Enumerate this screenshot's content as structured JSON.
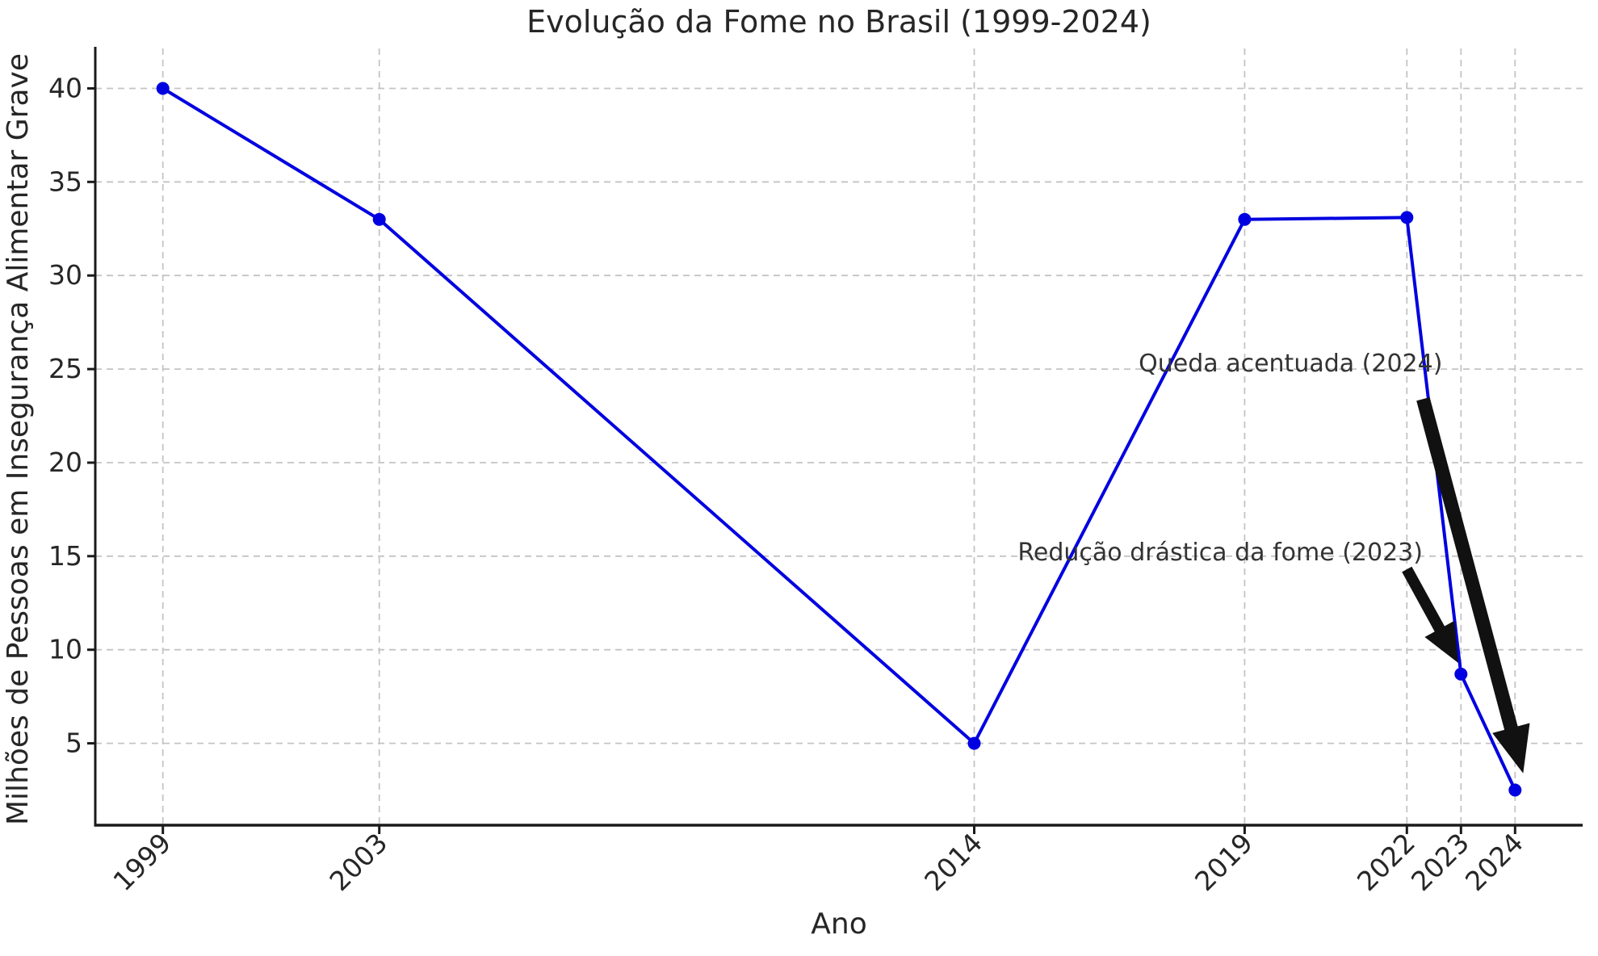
{
  "chart_data": {
    "type": "line",
    "title": "Evolução da Fome no Brasil (1999-2024)",
    "xlabel": "Ano",
    "ylabel": "Milhões de Pessoas em Insegurança Alimentar Grave",
    "x": [
      1999,
      2003,
      2014,
      2019,
      2022,
      2023,
      2024
    ],
    "y": [
      40,
      33,
      5,
      33,
      33.1,
      8.7,
      2.5
    ],
    "x_tick_labels": [
      "1999",
      "2003",
      "2014",
      "2019",
      "2022",
      "2023",
      "2024"
    ],
    "y_tick_values": [
      5,
      10,
      15,
      20,
      25,
      30,
      35,
      40
    ],
    "y_tick_labels": [
      "5",
      "10",
      "15",
      "20",
      "25",
      "30",
      "35",
      "40"
    ],
    "xlim": [
      1997.75,
      2025.25
    ],
    "ylim": [
      0.625,
      41.875
    ],
    "grid": "dashed",
    "legend": "none",
    "annotations": [
      {
        "text": "Queda acentuada (2024)",
        "text_at": [
          2019.85,
          25.3
        ],
        "arrow_from": [
          2022.3,
          23.4
        ],
        "arrow_to": [
          2024.15,
          3.4
        ]
      },
      {
        "text": "Redução drástica da fome (2023)",
        "text_at": [
          2018.55,
          15.2
        ],
        "arrow_from": [
          2022.0,
          14.3
        ],
        "arrow_to": [
          2022.95,
          9.3
        ]
      }
    ],
    "colors": {
      "line": "#0000E0",
      "marker": "#0000E0",
      "grid": "#c4c4c4",
      "axis": "#1a1a1a",
      "tick_text": "#262626",
      "title_text": "#262626",
      "annotation_text": "#333333",
      "arrow": "#111111",
      "background": "#ffffff"
    }
  }
}
